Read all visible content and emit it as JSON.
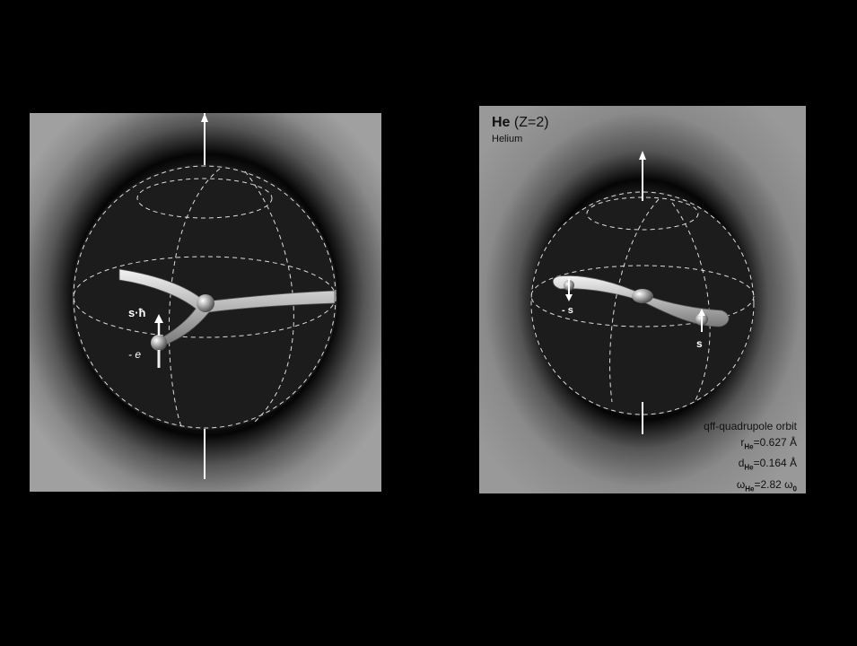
{
  "left_panel": {
    "spin_label": "s·ħ",
    "electron_label": "- e"
  },
  "right_panel": {
    "element_symbol": "He",
    "element_z": "(Z=2)",
    "element_name": "Helium",
    "spin_neg_label": "- s",
    "spin_pos_label": "s",
    "orbit_title": "qff-quadrupole orbit",
    "r_sub": "He",
    "r_value": "=0.627 Å",
    "d_sub": "He",
    "d_value": "=0.164 Å",
    "w_sub": "He",
    "w_value": "=2.82 ω",
    "w_value_sub": "0"
  },
  "colors": {
    "background": "#000000",
    "panel_gray": "#8c8c8c",
    "sphere_dark": "#1c1c1c"
  }
}
